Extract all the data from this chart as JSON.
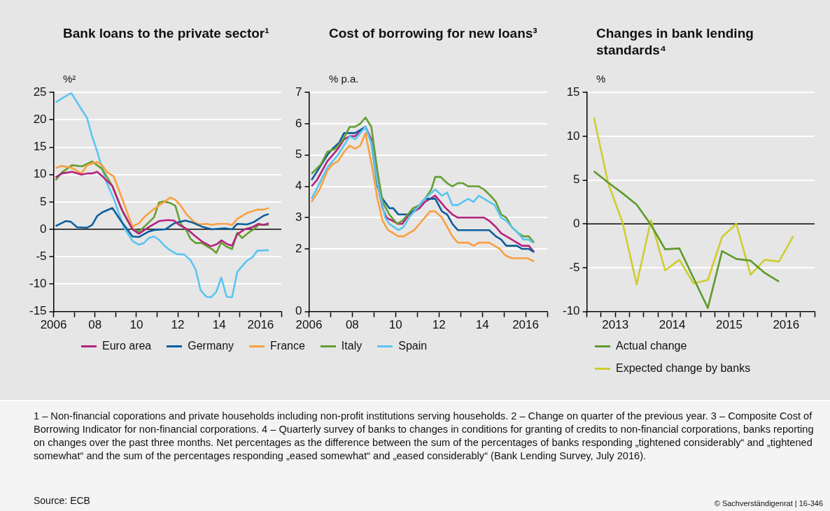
{
  "chart_data": [
    {
      "type": "line",
      "title": "Bank loans to the private sector¹",
      "ylabel": "%²",
      "xlim": [
        2006,
        2017
      ],
      "ylim": [
        -15,
        25
      ],
      "yticks": [
        -15,
        -10,
        -5,
        0,
        5,
        10,
        15,
        20,
        25
      ],
      "xticks": [
        {
          "value": 2006,
          "label": "2006"
        },
        {
          "value": 2007,
          "label": null
        },
        {
          "value": 2008,
          "label": "08"
        },
        {
          "value": 2009,
          "label": null
        },
        {
          "value": 2010,
          "label": "10"
        },
        {
          "value": 2011,
          "label": null
        },
        {
          "value": 2012,
          "label": "12"
        },
        {
          "value": 2013,
          "label": null
        },
        {
          "value": 2014,
          "label": "14"
        },
        {
          "value": 2015,
          "label": null
        },
        {
          "value": 2016,
          "label": "2016"
        },
        {
          "value": 2017,
          "label": null
        }
      ],
      "grid": "y",
      "legend": "bottom",
      "ref_lines": [
        {
          "axis": "y",
          "value": 0,
          "color": "#000000"
        }
      ],
      "series": [
        {
          "name": "Euro area",
          "color": "#b4237f",
          "x": [
            2006.1,
            2006.4,
            2006.89,
            2007.34,
            2007.62,
            2007.86,
            2008.1,
            2008.35,
            2008.84,
            2009.26,
            2009.81,
            2010.12,
            2010.6,
            2011.09,
            2011.52,
            2011.82,
            2012.07,
            2012.43,
            2012.8,
            2013.16,
            2013.59,
            2013.89,
            2014.11,
            2014.38,
            2014.62,
            2014.87,
            2015.23,
            2015.6,
            2015.9,
            2016.15,
            2016.39
          ],
          "values": [
            9.5,
            10.2,
            10.5,
            10.0,
            10.2,
            10.2,
            10.5,
            9.7,
            7.9,
            3.9,
            0,
            -0.8,
            0.4,
            1.5,
            1.7,
            1.6,
            0.8,
            0.1,
            -1.1,
            -2.2,
            -3.1,
            -2.7,
            -2.0,
            -2.7,
            -3.0,
            -0.9,
            0,
            0.4,
            1.0,
            0.8,
            1.1
          ]
        },
        {
          "name": "Germany",
          "color": "#0b5e9c",
          "x": [
            2006.1,
            2006.58,
            2006.83,
            2007.13,
            2007.62,
            2007.86,
            2008.1,
            2008.35,
            2008.84,
            2009.26,
            2009.81,
            2010.12,
            2010.6,
            2010.91,
            2011.4,
            2011.82,
            2012.37,
            2012.67,
            2013.16,
            2013.65,
            2014.26,
            2014.62,
            2014.87,
            2015.35,
            2015.66,
            2016.15,
            2016.39
          ],
          "values": [
            0.6,
            1.5,
            1.4,
            0.4,
            0.3,
            0.8,
            2.4,
            3.1,
            3.9,
            1.5,
            -1.3,
            -1.4,
            -0.4,
            -0.1,
            0,
            1.1,
            1.6,
            1.3,
            0.5,
            0,
            0.2,
            0,
            1.0,
            0.9,
            1.3,
            2.5,
            2.8
          ]
        },
        {
          "name": "France",
          "color": "#f9a03f",
          "x": [
            2006.1,
            2006.4,
            2006.89,
            2007.34,
            2007.62,
            2008.1,
            2008.35,
            2008.59,
            2008.9,
            2009.39,
            2009.81,
            2010.12,
            2010.42,
            2010.85,
            2011.15,
            2011.64,
            2011.88,
            2012.13,
            2012.43,
            2012.8,
            2013.04,
            2013.41,
            2013.65,
            2013.89,
            2014.38,
            2014.62,
            2014.87,
            2015.35,
            2015.84,
            2016.15,
            2016.39
          ],
          "values": [
            11.2,
            11.6,
            11.2,
            10.2,
            11.7,
            12.3,
            11.7,
            10.4,
            9.7,
            4.8,
            0.5,
            1.1,
            2.4,
            3.7,
            4.5,
            5.8,
            5.4,
            4.4,
            2.7,
            1.3,
            0.9,
            1.0,
            0.8,
            1.0,
            1.0,
            0.8,
            1.9,
            3.0,
            3.6,
            3.6,
            3.9
          ]
        },
        {
          "name": "Italy",
          "color": "#659e32",
          "x": [
            2006.1,
            2006.4,
            2006.89,
            2007.38,
            2007.86,
            2008.35,
            2008.84,
            2009.39,
            2009.81,
            2010.12,
            2010.36,
            2010.85,
            2011.09,
            2011.33,
            2011.64,
            2011.88,
            2012.13,
            2012.43,
            2012.61,
            2012.86,
            2013.16,
            2013.41,
            2013.65,
            2013.86,
            2014.1,
            2014.32,
            2014.62,
            2014.87,
            2015.11,
            2015.42,
            2015.66,
            2015.9,
            2016.39
          ],
          "values": [
            9.0,
            10.4,
            11.7,
            11.5,
            12.4,
            11.0,
            7.9,
            2.8,
            0.1,
            -0.4,
            0.4,
            2.2,
            4.9,
            5.1,
            4.8,
            4.3,
            1.1,
            -0.3,
            -1.7,
            -2.5,
            -2.5,
            -3.1,
            -3.6,
            -4.3,
            -2.4,
            -3.1,
            -3.6,
            -0.6,
            -1.6,
            -0.6,
            0,
            0.8,
            0.8
          ]
        },
        {
          "name": "Spain",
          "color": "#5bc5f0",
          "x": [
            2006.1,
            2006.85,
            2007.62,
            2007.86,
            2008.1,
            2008.53,
            2008.9,
            2009.39,
            2009.81,
            2010.12,
            2010.36,
            2010.6,
            2010.85,
            2011.09,
            2011.33,
            2011.58,
            2011.94,
            2012.31,
            2012.61,
            2012.86,
            2013.1,
            2013.37,
            2013.61,
            2013.86,
            2014.1,
            2014.36,
            2014.62,
            2014.87,
            2015.11,
            2015.35,
            2015.6,
            2015.84,
            2016.39
          ],
          "values": [
            23.2,
            24.9,
            20.3,
            17.0,
            14.3,
            8.8,
            5.7,
            0.4,
            -2.1,
            -2.8,
            -2.5,
            -1.6,
            -1.3,
            -1.9,
            -2.9,
            -3.7,
            -4.5,
            -4.6,
            -5.6,
            -7.3,
            -11.1,
            -12.3,
            -12.4,
            -11.4,
            -8.8,
            -12.3,
            -12.4,
            -7.8,
            -6.7,
            -5.7,
            -5.1,
            -3.9,
            -3.8
          ]
        }
      ],
      "annotations": [
        "1 – Non-financial coporations and private households including non-profit institutions serving households.  2 – Change on quarter of the previous year.  3 – Composite Cost of Borrowing Indicator for non-financial corporations.  4 – Quarterly survey of banks to changes in conditions for granting of credits to non-financial corporations, banks reporting on changes over the past three months. Net percentages as the difference between the sum of the percentages of banks responding „tightened considerably“ and „tightened somewhat“ and the sum of the percentages responding „eased somewhat“ and „eased considerably“  (Bank Lending Survey, July 2016).",
        "Source: ECB",
        "© Sachverständigenrat | 16-346"
      ]
    },
    {
      "type": "line",
      "title": "Cost of borrowing for new loans³",
      "ylabel": "% p.a.",
      "xlim": [
        2006,
        2017
      ],
      "ylim": [
        0,
        7
      ],
      "yticks": [
        0,
        2,
        3,
        4,
        5,
        6,
        7
      ],
      "xticks": [
        {
          "value": 2006,
          "label": "2006"
        },
        {
          "value": 2007,
          "label": null
        },
        {
          "value": 2008,
          "label": "08"
        },
        {
          "value": 2009,
          "label": null
        },
        {
          "value": 2010,
          "label": "10"
        },
        {
          "value": 2011,
          "label": null
        },
        {
          "value": 2012,
          "label": "12"
        },
        {
          "value": 2013,
          "label": null
        },
        {
          "value": 2014,
          "label": "14"
        },
        {
          "value": 2015,
          "label": null
        },
        {
          "value": 2016,
          "label": "2016"
        },
        {
          "value": 2017,
          "label": null
        }
      ],
      "grid": "y",
      "series": [
        {
          "color": "#5bc5f0",
          "x": [
            2006.12,
            2006.49,
            2006.85,
            2007.34,
            2007.88,
            2008.13,
            2008.61,
            2008.88,
            2009.16,
            2009.52,
            2009.71,
            2010.13,
            2010.37,
            2010.62,
            2011.1,
            2011.35,
            2011.83,
            2012.14,
            2012.38,
            2012.62,
            2012.87,
            2013.35,
            2013.6,
            2013.84,
            2014.57,
            2014.87,
            2015.11,
            2015.36,
            2015.66,
            2015.9,
            2016.15,
            2016.33
          ],
          "values": [
            3.6,
            4.1,
            4.6,
            5.0,
            5.6,
            5.5,
            5.9,
            5.4,
            4.1,
            3.0,
            2.8,
            2.6,
            2.7,
            3.0,
            3.4,
            3.6,
            3.9,
            3.7,
            3.8,
            3.4,
            3.4,
            3.6,
            3.5,
            3.7,
            3.4,
            3.0,
            2.9,
            2.7,
            2.5,
            2.3,
            2.3,
            2.2
          ]
        },
        {
          "color": "#659e32",
          "x": [
            2006.12,
            2006.55,
            2006.85,
            2007.22,
            2007.58,
            2007.88,
            2008.13,
            2008.37,
            2008.61,
            2008.88,
            2009.16,
            2009.4,
            2009.71,
            2010.07,
            2010.31,
            2010.56,
            2010.8,
            2011.1,
            2011.35,
            2011.65,
            2011.83,
            2012.08,
            2012.38,
            2012.62,
            2012.87,
            2013.11,
            2013.35,
            2013.84,
            2014.08,
            2014.38,
            2014.63,
            2014.87,
            2015.11,
            2015.36,
            2015.66,
            2015.9,
            2016.15,
            2016.39
          ],
          "values": [
            4.4,
            4.7,
            5.1,
            5.2,
            5.5,
            5.9,
            5.9,
            6.0,
            6.2,
            5.9,
            4.5,
            3.5,
            3.1,
            2.8,
            2.9,
            3.1,
            3.3,
            3.4,
            3.6,
            3.9,
            4.3,
            4.3,
            4.1,
            4.0,
            4.1,
            4.1,
            4.0,
            4.0,
            3.9,
            3.7,
            3.5,
            3.1,
            3.0,
            2.7,
            2.5,
            2.4,
            2.4,
            2.2
          ]
        },
        {
          "color": "#f9a03f",
          "x": [
            2006.12,
            2006.49,
            2006.85,
            2007.09,
            2007.34,
            2007.62,
            2007.88,
            2008.13,
            2008.37,
            2008.61,
            2008.92,
            2009.16,
            2009.4,
            2009.65,
            2010.13,
            2010.37,
            2010.86,
            2011.1,
            2011.59,
            2011.83,
            2012.14,
            2012.38,
            2012.62,
            2012.87,
            2013.35,
            2013.6,
            2013.84,
            2014.32,
            2014.81,
            2015.05,
            2015.36,
            2016.09,
            2016.39
          ],
          "values": [
            3.5,
            3.9,
            4.5,
            4.7,
            4.8,
            5.1,
            5.3,
            5.2,
            5.3,
            5.7,
            4.6,
            3.6,
            2.9,
            2.6,
            2.4,
            2.4,
            2.6,
            2.8,
            3.2,
            3.2,
            3.0,
            2.7,
            2.4,
            2.2,
            2.2,
            2.1,
            2.2,
            2.2,
            2.0,
            1.8,
            1.7,
            1.7,
            1.6
          ]
        },
        {
          "color": "#0b5e9c",
          "x": [
            2006.12,
            2006.49,
            2006.85,
            2007.09,
            2007.4,
            2007.62,
            2008.13,
            2008.61,
            2008.88,
            2009.16,
            2009.4,
            2009.71,
            2009.89,
            2010.13,
            2010.62,
            2010.98,
            2011.35,
            2011.83,
            2012.14,
            2012.38,
            2012.62,
            2012.87,
            2014.32,
            2014.63,
            2014.87,
            2015.11,
            2015.6,
            2015.84,
            2016.15,
            2016.39
          ],
          "values": [
            4.2,
            4.6,
            5.0,
            5.2,
            5.4,
            5.7,
            5.7,
            5.9,
            5.4,
            4.0,
            3.6,
            3.3,
            3.3,
            3.1,
            3.1,
            3.3,
            3.6,
            3.6,
            3.2,
            3.1,
            2.8,
            2.6,
            2.6,
            2.4,
            2.3,
            2.1,
            2.1,
            2.0,
            2.0,
            1.9
          ]
        },
        {
          "color": "#b4237f",
          "x": [
            2006.12,
            2006.37,
            2006.85,
            2007.34,
            2007.62,
            2007.88,
            2008.13,
            2008.61,
            2008.88,
            2009.16,
            2009.4,
            2009.58,
            2010.13,
            2010.31,
            2010.62,
            2011.1,
            2011.35,
            2011.83,
            2012.32,
            2012.62,
            2012.87,
            2014.08,
            2014.32,
            2014.63,
            2014.87,
            2015.36,
            2015.84,
            2016.15,
            2016.39
          ],
          "values": [
            4.0,
            4.2,
            4.8,
            5.2,
            5.5,
            5.6,
            5.6,
            5.9,
            5.5,
            4.1,
            3.3,
            3.0,
            2.8,
            2.8,
            3.1,
            3.3,
            3.5,
            3.7,
            3.3,
            3.1,
            3.0,
            3.0,
            2.9,
            2.7,
            2.5,
            2.3,
            2.1,
            2.1,
            1.9
          ]
        }
      ]
    },
    {
      "type": "line",
      "title": "Changes in bank lending standards⁴",
      "ylabel": "%",
      "xlim": [
        2013,
        2017
      ],
      "ylim": [
        -10,
        15
      ],
      "yticks": [
        -10,
        -5,
        0,
        5,
        10,
        15
      ],
      "xticks": [
        {
          "value": 2013,
          "label": null
        },
        {
          "value": 2013.25,
          "label": null
        },
        {
          "value": 2013.5,
          "label": "2013"
        },
        {
          "value": 2013.75,
          "label": null
        },
        {
          "value": 2014,
          "label": null
        },
        {
          "value": 2014.25,
          "label": null
        },
        {
          "value": 2014.5,
          "label": "2014"
        },
        {
          "value": 2014.75,
          "label": null
        },
        {
          "value": 2015,
          "label": null
        },
        {
          "value": 2015.25,
          "label": null
        },
        {
          "value": 2015.5,
          "label": "2015"
        },
        {
          "value": 2015.75,
          "label": null
        },
        {
          "value": 2016,
          "label": null
        },
        {
          "value": 2016.25,
          "label": null
        },
        {
          "value": 2016.5,
          "label": "2016"
        },
        {
          "value": 2016.75,
          "label": null
        },
        {
          "value": 2017,
          "label": null
        }
      ],
      "grid": "y",
      "legend": "bottom",
      "ref_lines": [
        {
          "axis": "y",
          "value": 0,
          "color": "#000000"
        }
      ],
      "series": [
        {
          "name": "Actual change",
          "color": "#5e9a2d",
          "x": [
            2013.125,
            2013.375,
            2013.625,
            2013.875,
            2014.125,
            2014.375,
            2014.625,
            2014.875,
            2015.125,
            2015.375,
            2015.625,
            2015.875,
            2016.125,
            2016.375
          ],
          "values": [
            6.0,
            4.7,
            3.5,
            2.2,
            -0.1,
            -2.9,
            -2.8,
            -6.2,
            -9.6,
            -3.1,
            -4.0,
            -4.2,
            -5.6,
            -6.6
          ]
        },
        {
          "name": "Expected change by banks",
          "color": "#cfcd2e",
          "x": [
            2013.125,
            2013.375,
            2013.625,
            2013.875,
            2014.125,
            2014.375,
            2014.625,
            2014.875,
            2015.125,
            2015.375,
            2015.625,
            2015.875,
            2016.125,
            2016.375,
            2016.625
          ],
          "values": [
            12.1,
            4.6,
            0.2,
            -6.9,
            0.4,
            -5.3,
            -4.1,
            -6.8,
            -6.4,
            -1.5,
            0,
            -5.8,
            -4.1,
            -4.3,
            -1.4
          ]
        }
      ]
    }
  ]
}
